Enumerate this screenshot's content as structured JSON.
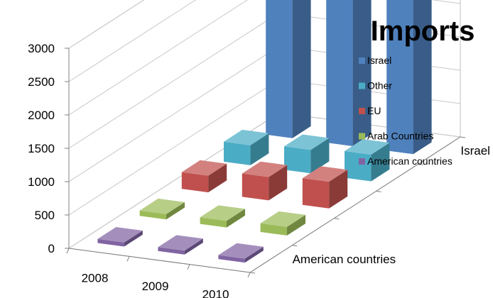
{
  "chart_data": {
    "type": "bar",
    "subtype": "3d-column",
    "title": "Imports",
    "categories": [
      "2008",
      "2009",
      "2010"
    ],
    "depth_axis_labels": [
      "American countries",
      "Israel"
    ],
    "series": [
      {
        "name": "American countries",
        "color": "#8064A2",
        "values": [
          60,
          60,
          60
        ]
      },
      {
        "name": "Arab Countries",
        "color": "#9BBB59",
        "values": [
          80,
          100,
          130
        ]
      },
      {
        "name": "EU",
        "color": "#C0504D",
        "values": [
          250,
          350,
          400
        ]
      },
      {
        "name": "Other",
        "color": "#4BACC6",
        "values": [
          300,
          350,
          400
        ]
      },
      {
        "name": "Israel",
        "color": "#4F81BD",
        "values": [
          2990,
          2990,
          2990
        ]
      }
    ],
    "yticks": [
      0,
      500,
      1000,
      1500,
      2000,
      2500,
      3000
    ],
    "ylim": [
      0,
      3000
    ],
    "grid": true,
    "legend_position": "right"
  }
}
